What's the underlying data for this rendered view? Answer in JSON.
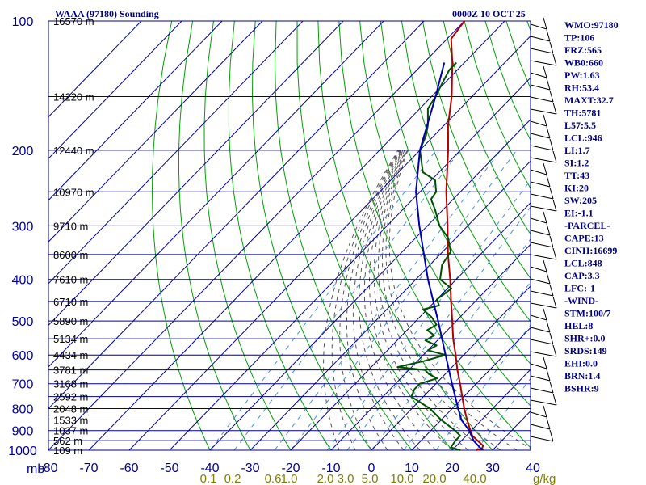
{
  "header": {
    "left": "WAAA (97180) Sounding",
    "right": "0000Z 10 OCT 25"
  },
  "chart_data": {
    "type": "skew-t",
    "title": "WAAA (97180) Sounding",
    "valid_time": "0000Z 10 OCT 25",
    "pressure_axis": {
      "unit_label": "mb",
      "levels": [
        100,
        200,
        300,
        400,
        500,
        600,
        700,
        800,
        900,
        1000
      ],
      "grid_levels": [
        100,
        150,
        200,
        250,
        300,
        350,
        400,
        450,
        500,
        550,
        600,
        650,
        700,
        750,
        800,
        850,
        900,
        950,
        1000
      ]
    },
    "temperature_axis": {
      "ticks": [
        -80,
        -70,
        -60,
        -50,
        -40,
        -30,
        -20,
        -10,
        0,
        10,
        20,
        30,
        40
      ],
      "labels": [
        "-80",
        "-70",
        "-60",
        "-50",
        "-40",
        "-30",
        "-20",
        "-10",
        "0",
        "10",
        "20",
        "30",
        "40"
      ],
      "range": [
        -80,
        40
      ]
    },
    "height_labels": [
      {
        "p": 100,
        "text": "16570 m"
      },
      {
        "p": 150,
        "text": "14220 m"
      },
      {
        "p": 200,
        "text": "12440 m"
      },
      {
        "p": 250,
        "text": "10970 m"
      },
      {
        "p": 300,
        "text": "9710 m"
      },
      {
        "p": 350,
        "text": "8600 m"
      },
      {
        "p": 400,
        "text": "7610 m"
      },
      {
        "p": 450,
        "text": "6710 m"
      },
      {
        "p": 500,
        "text": "5890 m"
      },
      {
        "p": 550,
        "text": "5134 m"
      },
      {
        "p": 600,
        "text": "4434 m"
      },
      {
        "p": 650,
        "text": "3781 m"
      },
      {
        "p": 700,
        "text": "3168 m"
      },
      {
        "p": 750,
        "text": "2592 m"
      },
      {
        "p": 800,
        "text": "2048 m"
      },
      {
        "p": 850,
        "text": "1533 m"
      },
      {
        "p": 900,
        "text": "1037 m"
      },
      {
        "p": 950,
        "text": "562 m"
      },
      {
        "p": 1000,
        "text": "109 m"
      }
    ],
    "mixing_ratio_labels": [
      {
        "t": -40,
        "text": "0.1"
      },
      {
        "t": -34,
        "text": "0.2"
      },
      {
        "t": -24,
        "text": "0.6"
      },
      {
        "t": -20,
        "text": "1.0"
      },
      {
        "t": -11,
        "text": "2.0"
      },
      {
        "t": -6,
        "text": "3.0"
      },
      {
        "t": 0,
        "text": "5.0"
      },
      {
        "t": 8,
        "text": "10.0"
      },
      {
        "t": 16,
        "text": "20.0"
      },
      {
        "t": 26,
        "text": "40.0"
      }
    ],
    "mixing_ratio_unit": "g/kg",
    "series": [
      {
        "name": "temperature",
        "color": "#b00000",
        "points": [
          [
            1000,
            26
          ],
          [
            990,
            27
          ],
          [
            975,
            26.5
          ],
          [
            950,
            24
          ],
          [
            925,
            21.5
          ],
          [
            900,
            19.8
          ],
          [
            850,
            16.4
          ],
          [
            800,
            13
          ],
          [
            750,
            9.6
          ],
          [
            700,
            6
          ],
          [
            650,
            2
          ],
          [
            600,
            -2
          ],
          [
            550,
            -6.5
          ],
          [
            500,
            -11
          ],
          [
            450,
            -16
          ],
          [
            400,
            -21.5
          ],
          [
            350,
            -28
          ],
          [
            300,
            -35
          ],
          [
            250,
            -43.5
          ],
          [
            200,
            -53
          ],
          [
            175,
            -59
          ],
          [
            150,
            -65
          ],
          [
            125,
            -73
          ],
          [
            110,
            -79
          ],
          [
            100,
            -80
          ]
        ]
      },
      {
        "name": "dewpoint",
        "color": "#005000",
        "points": [
          [
            1000,
            22
          ],
          [
            985,
            19
          ],
          [
            950,
            18.5
          ],
          [
            925,
            18.5
          ],
          [
            900,
            16
          ],
          [
            850,
            10
          ],
          [
            800,
            4.5
          ],
          [
            750,
            -3
          ],
          [
            720,
            -4
          ],
          [
            700,
            -4
          ],
          [
            680,
            -1
          ],
          [
            665,
            -4
          ],
          [
            650,
            -6
          ],
          [
            640,
            -13.5
          ],
          [
            620,
            -8.5
          ],
          [
            600,
            -4.5
          ],
          [
            585,
            -10
          ],
          [
            570,
            -9
          ],
          [
            555,
            -13
          ],
          [
            540,
            -12
          ],
          [
            525,
            -15
          ],
          [
            510,
            -14
          ],
          [
            490,
            -17
          ],
          [
            470,
            -21
          ],
          [
            460,
            -18
          ],
          [
            445,
            -20
          ],
          [
            420,
            -19
          ],
          [
            400,
            -24
          ],
          [
            370,
            -27
          ],
          [
            345,
            -28
          ],
          [
            320,
            -32
          ],
          [
            300,
            -37
          ],
          [
            275,
            -42
          ],
          [
            260,
            -45.5
          ],
          [
            250,
            -46
          ],
          [
            235,
            -49
          ],
          [
            225,
            -54
          ],
          [
            200,
            -60
          ],
          [
            185,
            -62
          ],
          [
            175,
            -64
          ],
          [
            160,
            -68
          ],
          [
            150,
            -69
          ],
          [
            140,
            -70.5
          ],
          [
            130,
            -72
          ],
          [
            125,
            -72
          ]
        ]
      },
      {
        "name": "parcel",
        "color": "#0000b0",
        "points": [
          [
            1000,
            27.5
          ],
          [
            950,
            23
          ],
          [
            900,
            19.5
          ],
          [
            850,
            15
          ],
          [
            800,
            11.5
          ],
          [
            700,
            4
          ],
          [
            600,
            -4.5
          ],
          [
            500,
            -14.5
          ],
          [
            400,
            -27
          ],
          [
            300,
            -42
          ],
          [
            250,
            -51
          ],
          [
            200,
            -60
          ],
          [
            150,
            -69
          ],
          [
            125,
            -75
          ]
        ]
      }
    ],
    "dewpoint_surface_marker": {
      "p": 990,
      "t": 26
    }
  },
  "indices": [
    "WMO:97180",
    "TP:106",
    "FRZ:565",
    "WB0:660",
    "PW:1.63",
    "RH:53.4",
    "MAXT:32.7",
    "TH:5781",
    "L57:5.5",
    "LCL:946",
    "LI:1.7",
    "SI:1.2",
    "TT:43",
    "KI:20",
    "SW:205",
    "EI:-1.1",
    "-PARCEL-",
    "CAPE:13",
    "CINH:16699",
    "LCL:848",
    "CAP:3.3",
    "LFC:-1",
    "-WIND-",
    "STM:100/7",
    "HEL:8",
    "SHR+:0.0",
    "SRDS:149",
    "EHI:0.0",
    "BRN:1.4",
    "BSHR:9"
  ],
  "colors": {
    "grid": "#00008b",
    "isotherm": "#0000a0",
    "dry_adiabat": "#00a000",
    "moist_adiabat": "#555555",
    "mixing_ratio": "#4a90d9",
    "temperature": "#b00000",
    "dewpoint": "#005000",
    "parcel": "#0000b0",
    "labels": "#000080"
  }
}
